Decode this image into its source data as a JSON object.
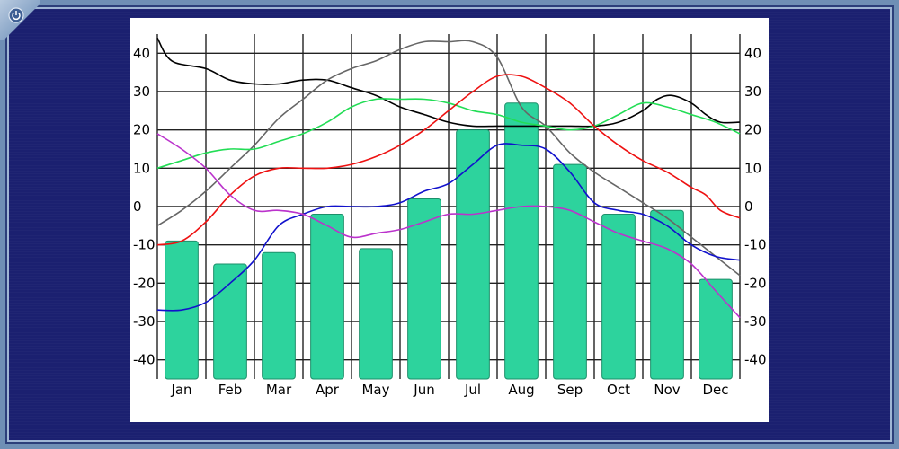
{
  "chart_data": {
    "type": "bar",
    "categories": [
      "Jan",
      "Feb",
      "Mar",
      "Apr",
      "May",
      "Jun",
      "Jul",
      "Aug",
      "Sep",
      "Oct",
      "Nov",
      "Dec"
    ],
    "ylim": [
      -45,
      45
    ],
    "yticks": [
      40,
      30,
      20,
      10,
      0,
      -10,
      -20,
      -30,
      -40
    ],
    "grid": true,
    "bar_color": "#2dd39d",
    "series": [
      {
        "type": "bar",
        "color": "#2dd39d",
        "values": [
          -9,
          -15,
          -12,
          -2,
          -11,
          2,
          20,
          27,
          11,
          -2,
          -1,
          -19
        ]
      }
    ],
    "lines": [
      {
        "color": "#000000",
        "x": [
          0,
          0.3,
          1,
          1.5,
          2,
          2.5,
          3,
          3.5,
          4,
          4.5,
          5,
          5.5,
          6,
          6.5,
          7,
          7.5,
          8,
          8.5,
          9,
          9.5,
          10,
          10.3,
          10.6,
          11,
          11.3,
          11.6,
          12
        ],
        "y": [
          44,
          38,
          36,
          33,
          32,
          32,
          33,
          33,
          31,
          29,
          26,
          24,
          22,
          21,
          21,
          21,
          21,
          21,
          21,
          22,
          25,
          28,
          29,
          27,
          24,
          22,
          22
        ]
      },
      {
        "color": "#666666",
        "x": [
          0,
          0.5,
          1,
          1.5,
          2,
          2.5,
          3,
          3.5,
          4,
          4.5,
          5,
          5.5,
          6,
          6.5,
          7,
          7.5,
          8,
          8.5,
          9,
          9.5,
          10,
          10.5,
          11,
          11.5,
          12
        ],
        "y": [
          -5,
          -1,
          4,
          10,
          16,
          23,
          28,
          33,
          36,
          38,
          41,
          43,
          43,
          43,
          39,
          26,
          21,
          14,
          9,
          5,
          1,
          -3,
          -8,
          -13,
          -18
        ]
      },
      {
        "color": "#22dd55",
        "x": [
          0,
          0.5,
          1,
          1.5,
          2,
          2.5,
          3,
          3.5,
          4,
          4.5,
          5,
          5.5,
          6,
          6.5,
          7,
          7.5,
          8,
          8.5,
          9,
          9.5,
          10,
          10.5,
          11,
          11.5,
          12
        ],
        "y": [
          10,
          12,
          14,
          15,
          15,
          17,
          19,
          22,
          26,
          28,
          28,
          28,
          27,
          25,
          24,
          22,
          21,
          20,
          21,
          24,
          27,
          26,
          24,
          22,
          19
        ]
      },
      {
        "color": "#ee1111",
        "x": [
          0,
          0.5,
          1,
          1.5,
          2,
          2.5,
          3,
          3.5,
          4,
          4.5,
          5,
          5.5,
          6,
          6.5,
          7,
          7.5,
          8,
          8.5,
          9,
          9.5,
          10,
          10.5,
          11,
          11.3,
          11.6,
          12
        ],
        "y": [
          -10,
          -9,
          -4,
          3,
          8,
          10,
          10,
          10,
          11,
          13,
          16,
          20,
          25,
          30,
          34,
          34,
          31,
          27,
          21,
          16,
          12,
          9,
          5,
          3,
          -1,
          -3
        ]
      },
      {
        "color": "#1111cc",
        "x": [
          0,
          0.5,
          1,
          1.5,
          2,
          2.5,
          3,
          3.5,
          4,
          4.5,
          5,
          5.5,
          6,
          6.5,
          7,
          7.5,
          8,
          8.5,
          9,
          9.5,
          10,
          10.5,
          11,
          11.5,
          12
        ],
        "y": [
          -27,
          -27,
          -25,
          -20,
          -14,
          -5,
          -2,
          0,
          0,
          0,
          1,
          4,
          6,
          11,
          16,
          16,
          15,
          9,
          1,
          -1,
          -2,
          -5,
          -10,
          -13,
          -14
        ]
      },
      {
        "color": "#bb33cc",
        "x": [
          0,
          0.5,
          1,
          1.5,
          2,
          2.5,
          3,
          3.5,
          4,
          4.5,
          5,
          5.5,
          6,
          6.5,
          7,
          7.5,
          8,
          8.5,
          9,
          9.5,
          10,
          10.5,
          11,
          11.5,
          12
        ],
        "y": [
          19,
          15,
          10,
          3,
          -1,
          -1,
          -2,
          -5,
          -8,
          -7,
          -6,
          -4,
          -2,
          -2,
          -1,
          0,
          0,
          -1,
          -4,
          -7,
          -9,
          -11,
          -15,
          -22,
          -29
        ]
      }
    ]
  }
}
